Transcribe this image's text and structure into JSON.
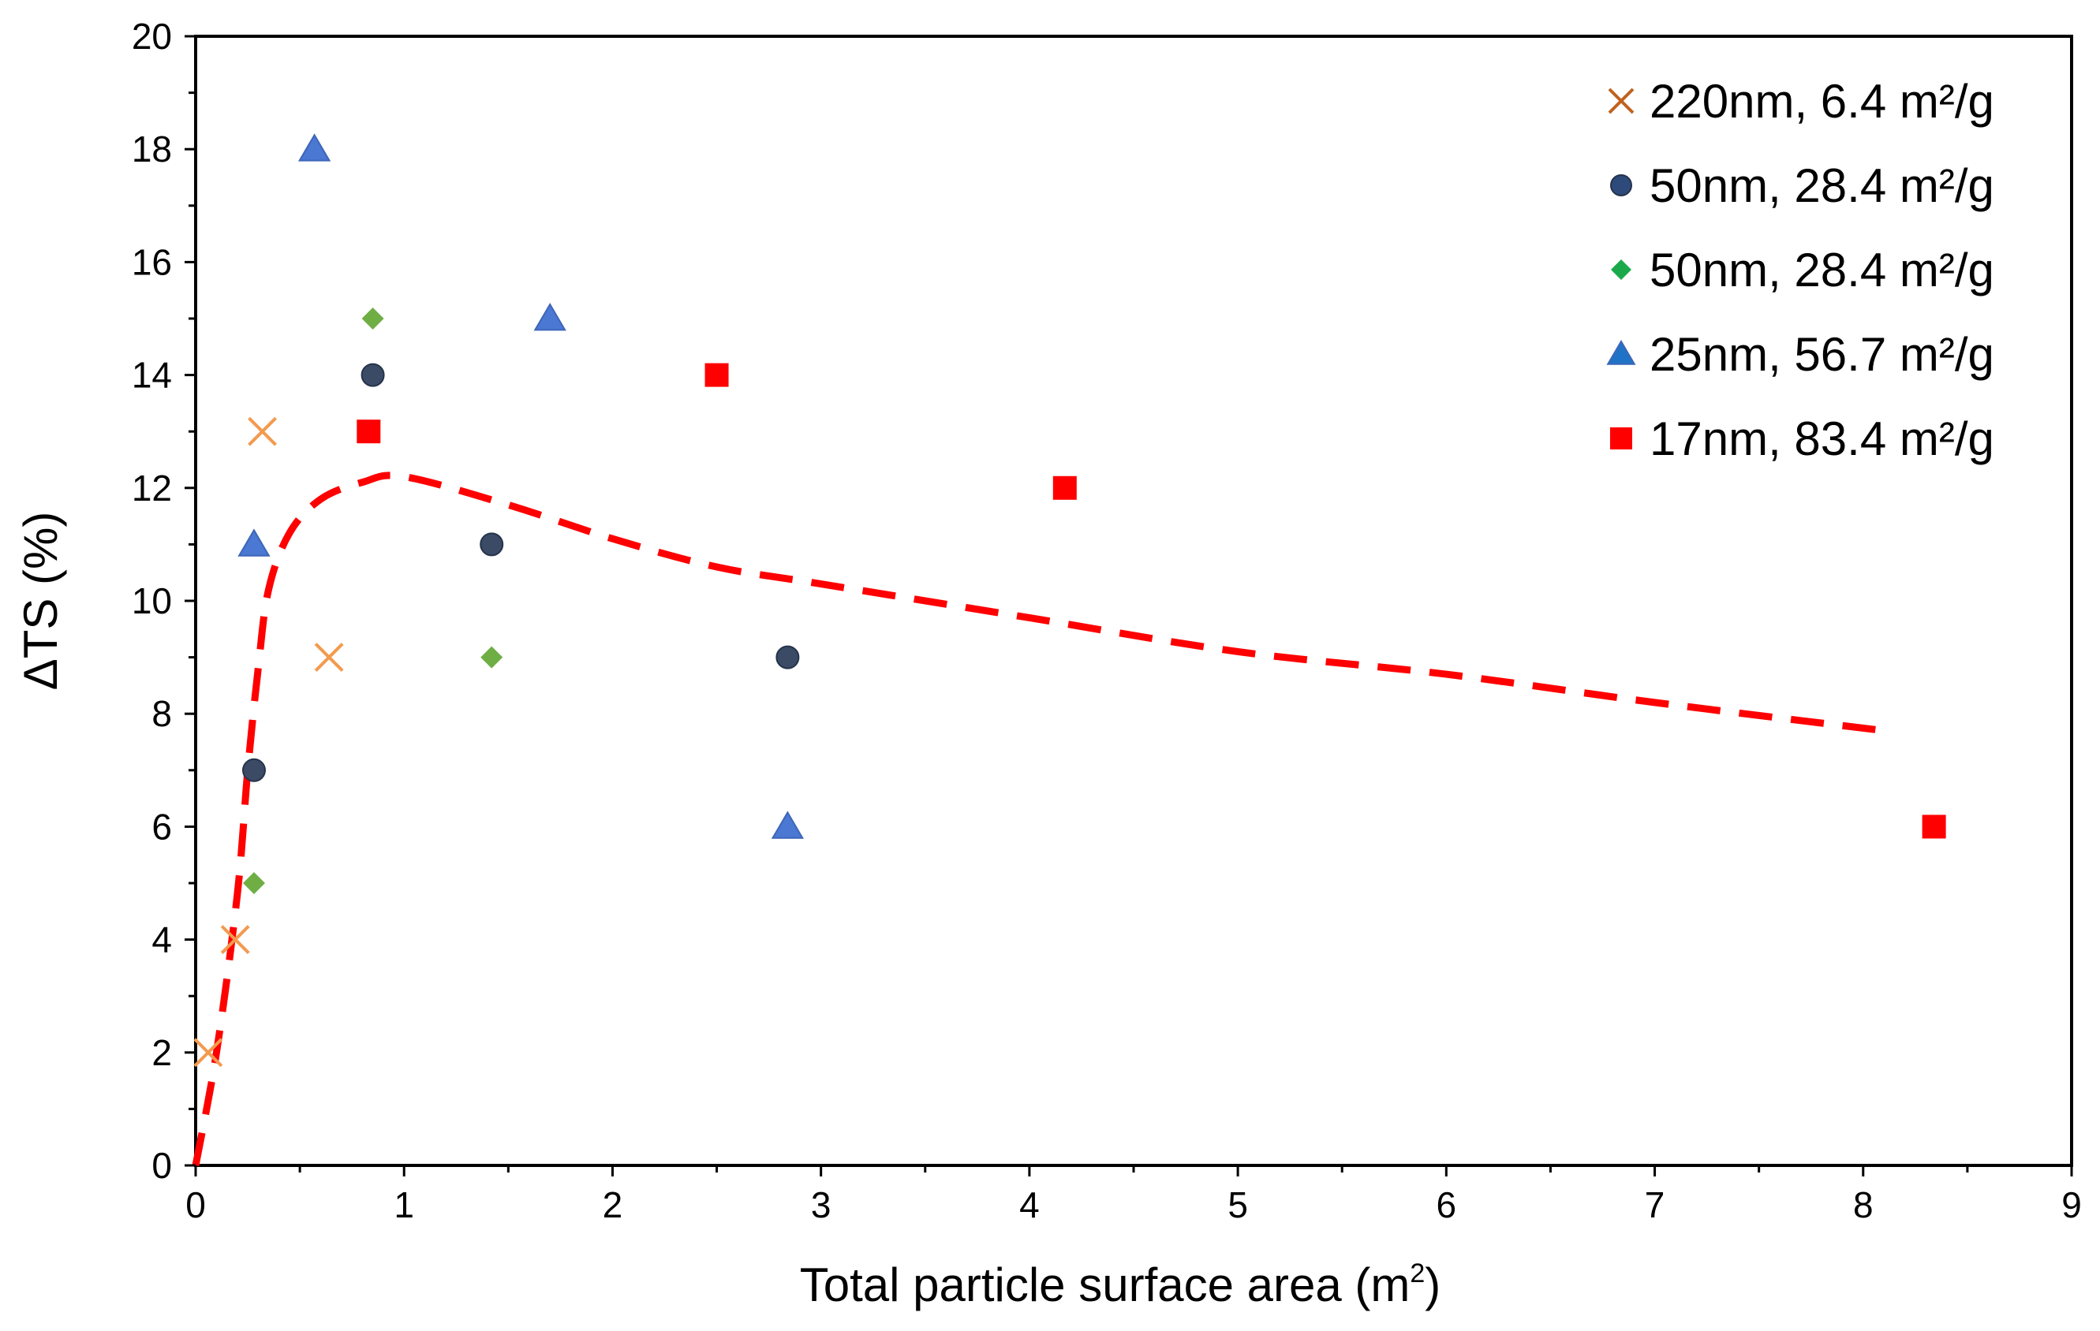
{
  "chart_data": {
    "type": "scatter",
    "xlabel": "Total particle surface area (m",
    "xlabel_sup": "2",
    "xlabel_end": ")",
    "ylabel": "ΔTS (%)",
    "xlim": [
      0,
      9
    ],
    "ylim": [
      0,
      20
    ],
    "x_ticks": [
      "0",
      "1",
      "2",
      "3",
      "4",
      "5",
      "6",
      "7",
      "8",
      "9"
    ],
    "y_ticks": [
      "0",
      "2",
      "4",
      "6",
      "8",
      "10",
      "12",
      "14",
      "16",
      "18",
      "20"
    ],
    "legend_position": "top-right",
    "series": [
      {
        "name": "220nm, 6.4 m²/g",
        "marker": "x",
        "color": "#F39A4E",
        "legend_color": "#C0621E",
        "points": [
          [
            0.06,
            2
          ],
          [
            0.19,
            4
          ],
          [
            0.32,
            13
          ],
          [
            0.64,
            9
          ]
        ]
      },
      {
        "name": "50nm, 28.4 m²/g",
        "marker": "circle",
        "color": "#3B4B66",
        "legend_color": "#2E4A7A",
        "points": [
          [
            0.28,
            7
          ],
          [
            0.85,
            14
          ],
          [
            1.42,
            11
          ],
          [
            2.84,
            9
          ]
        ]
      },
      {
        "name": "50nm, 28.4 m²/g",
        "marker": "diamond",
        "color": "#6FAE45",
        "legend_color": "#1AAA4B",
        "points": [
          [
            0.28,
            5
          ],
          [
            0.85,
            15
          ],
          [
            1.42,
            9
          ]
        ]
      },
      {
        "name": "25nm, 56.7 m²/g",
        "marker": "triangle",
        "color": "#4A78D2",
        "legend_color": "#1F73C6",
        "points": [
          [
            0.28,
            11
          ],
          [
            0.57,
            18
          ],
          [
            1.7,
            15
          ],
          [
            2.84,
            6
          ]
        ]
      },
      {
        "name": "17nm, 83.4 m²/g",
        "marker": "square",
        "color": "#FF0000",
        "legend_color": "#FF0000",
        "points": [
          [
            0.83,
            13
          ],
          [
            2.5,
            14
          ],
          [
            4.17,
            12
          ],
          [
            8.34,
            6
          ]
        ]
      }
    ],
    "trend_line": {
      "style": "dashed",
      "color": "#FF0000",
      "points": [
        [
          0,
          0
        ],
        [
          0.1,
          2
        ],
        [
          0.2,
          4.8
        ],
        [
          0.25,
          7
        ],
        [
          0.3,
          8.8
        ],
        [
          0.35,
          10.2
        ],
        [
          0.45,
          11.2
        ],
        [
          0.6,
          11.8
        ],
        [
          0.8,
          12.1
        ],
        [
          1.0,
          12.2
        ],
        [
          1.5,
          11.7
        ],
        [
          2.0,
          11.1
        ],
        [
          2.5,
          10.6
        ],
        [
          3.0,
          10.3
        ],
        [
          4.0,
          9.7
        ],
        [
          5.0,
          9.1
        ],
        [
          6.0,
          8.7
        ],
        [
          7.0,
          8.2
        ],
        [
          8.1,
          7.7
        ]
      ]
    }
  }
}
